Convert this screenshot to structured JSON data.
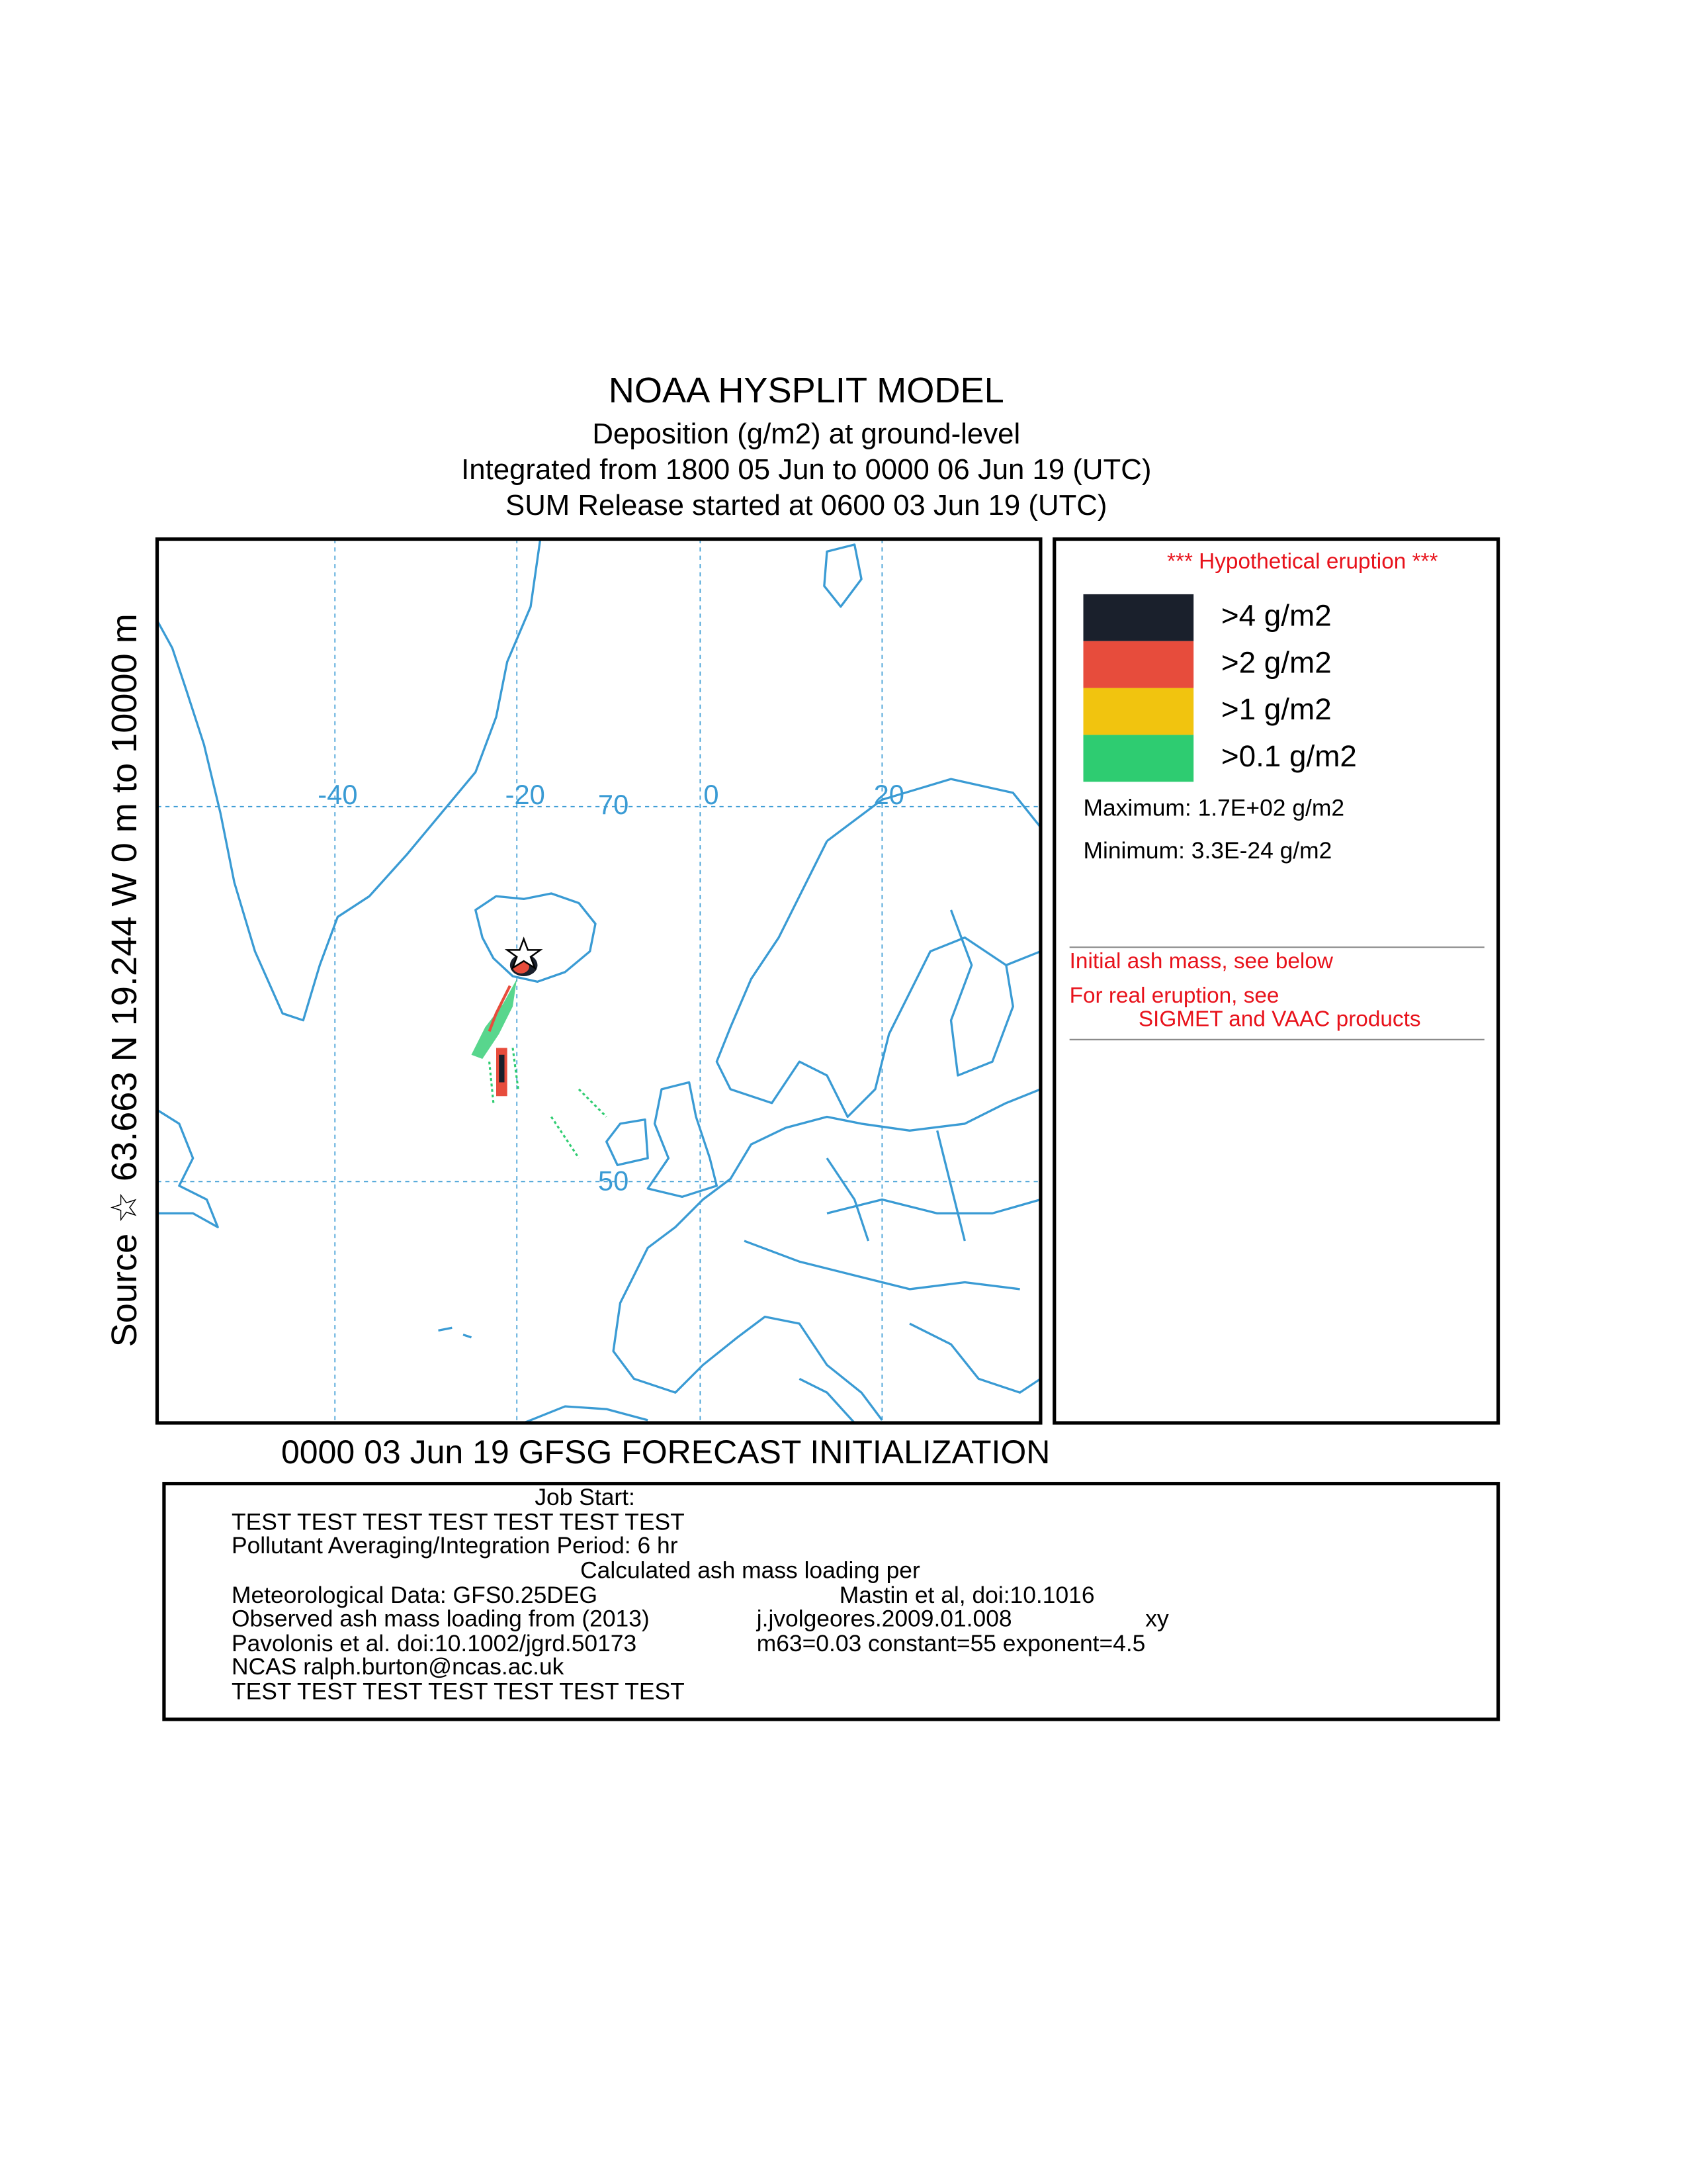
{
  "header": {
    "title": "NOAA HYSPLIT MODEL",
    "lines": [
      "Deposition  (g/m2) at ground-level",
      "Integrated from 1800 05 Jun to 0000 06 Jun 19 (UTC)",
      "SUM  Release started at 0600 03 Jun 19 (UTC)"
    ]
  },
  "side_label": "Source ☆ 63.663 N  19.244 W   0 m to 10000 m",
  "map": {
    "grid_labels": [
      "-40",
      "-20",
      "70",
      "0",
      "20",
      "50"
    ]
  },
  "legend": {
    "title": "*** Hypothetical eruption ***",
    "items": [
      {
        "label": ">4 g/m2",
        "color": "#1a202c"
      },
      {
        "label": ">2 g/m2",
        "color": "#e74c3c"
      },
      {
        "label": ">1 g/m2",
        "color": "#f1c40f"
      },
      {
        "label": ">0.1 g/m2",
        "color": "#2ecc71"
      }
    ],
    "maximum": "Maximum: 1.7E+02 g/m2",
    "minimum": "Minimum: 3.3E-24 g/m2"
  },
  "notes": [
    "Initial ash mass, see below",
    "For real eruption, see",
    "SIGMET and VAAC products"
  ],
  "footer": {
    "caption": "0000 03 Jun 19 GFSG FORECAST INITIALIZATION"
  },
  "job_box": {
    "job_start": "Job Start:",
    "test_top": "TEST TEST TEST TEST TEST TEST TEST",
    "period": "Pollutant Averaging/Integration Period: 6 hr",
    "calculated": "Calculated ash mass loading per",
    "met_data": "Meteorological Data: GFS0.25DEG",
    "mastin": "Mastin et al, doi:10.1016",
    "observed": "Observed ash mass loading from (2013)",
    "doi_tail": "j.jvolgeores.2009.01.008",
    "xy": "xy",
    "pavolonis": "Pavolonis et al. doi:10.1002/jgrd.50173",
    "params": "m63=0.03  constant=55 exponent=4.5",
    "contact": "NCAS ralph.burton@ncas.ac.uk",
    "test_bottom": "TEST TEST TEST TEST TEST TEST TEST"
  }
}
